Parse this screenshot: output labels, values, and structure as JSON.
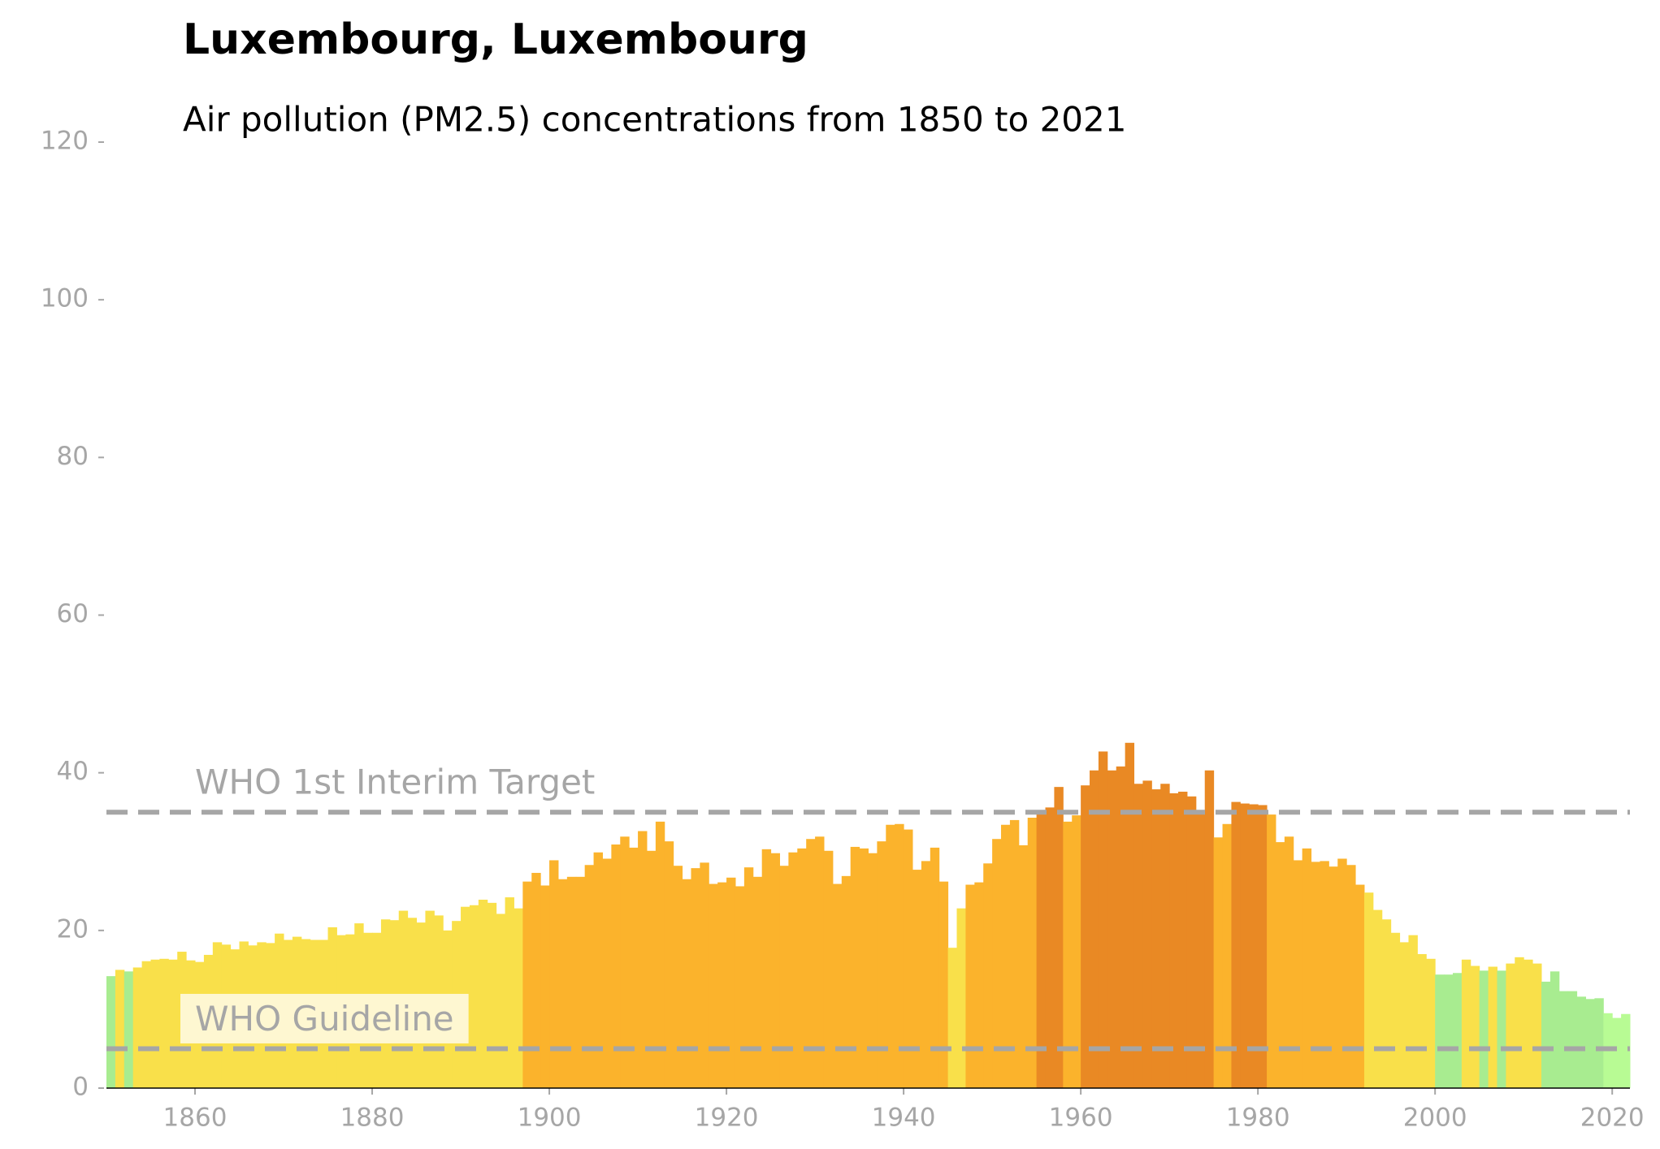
{
  "chart_data": {
    "type": "bar",
    "title": "Luxembourg, Luxembourg",
    "subtitle": "Air pollution (PM2.5) concentrations from 1850 to 2021",
    "x": [
      1850,
      1851,
      1852,
      1853,
      1854,
      1855,
      1856,
      1857,
      1858,
      1859,
      1860,
      1861,
      1862,
      1863,
      1864,
      1865,
      1866,
      1867,
      1868,
      1869,
      1870,
      1871,
      1872,
      1873,
      1874,
      1875,
      1876,
      1877,
      1878,
      1879,
      1880,
      1881,
      1882,
      1883,
      1884,
      1885,
      1886,
      1887,
      1888,
      1889,
      1890,
      1891,
      1892,
      1893,
      1894,
      1895,
      1896,
      1897,
      1898,
      1899,
      1900,
      1901,
      1902,
      1903,
      1904,
      1905,
      1906,
      1907,
      1908,
      1909,
      1910,
      1911,
      1912,
      1913,
      1914,
      1915,
      1916,
      1917,
      1918,
      1919,
      1920,
      1921,
      1922,
      1923,
      1924,
      1925,
      1926,
      1927,
      1928,
      1929,
      1930,
      1931,
      1932,
      1933,
      1934,
      1935,
      1936,
      1937,
      1938,
      1939,
      1940,
      1941,
      1942,
      1943,
      1944,
      1945,
      1946,
      1947,
      1948,
      1949,
      1950,
      1951,
      1952,
      1953,
      1954,
      1955,
      1956,
      1957,
      1958,
      1959,
      1960,
      1961,
      1962,
      1963,
      1964,
      1965,
      1966,
      1967,
      1968,
      1969,
      1970,
      1971,
      1972,
      1973,
      1974,
      1975,
      1976,
      1977,
      1978,
      1979,
      1980,
      1981,
      1982,
      1983,
      1984,
      1985,
      1986,
      1987,
      1988,
      1989,
      1990,
      1991,
      1992,
      1993,
      1994,
      1995,
      1996,
      1997,
      1998,
      1999,
      2000,
      2001,
      2002,
      2003,
      2004,
      2005,
      2006,
      2007,
      2008,
      2009,
      2010,
      2011,
      2012,
      2013,
      2014,
      2015,
      2016,
      2017,
      2018,
      2019,
      2020,
      2021
    ],
    "values": [
      14.2,
      15.0,
      14.8,
      15.3,
      16.1,
      16.3,
      16.4,
      16.3,
      17.3,
      16.2,
      16.0,
      16.9,
      18.5,
      18.2,
      17.6,
      18.6,
      18.1,
      18.5,
      18.4,
      19.6,
      18.8,
      19.2,
      18.9,
      18.8,
      18.8,
      20.4,
      19.4,
      19.5,
      20.9,
      19.7,
      19.7,
      21.4,
      21.3,
      22.5,
      21.6,
      21.0,
      22.5,
      21.9,
      20.0,
      21.2,
      23.0,
      23.2,
      23.9,
      23.5,
      22.1,
      24.2,
      22.8,
      26.2,
      27.3,
      25.7,
      28.9,
      26.5,
      26.8,
      26.8,
      28.3,
      29.9,
      29.1,
      30.9,
      31.9,
      30.5,
      32.6,
      30.1,
      33.8,
      31.3,
      28.2,
      26.5,
      27.9,
      28.6,
      25.9,
      26.1,
      26.7,
      25.6,
      28.0,
      26.8,
      30.3,
      29.8,
      28.2,
      29.9,
      30.4,
      31.6,
      31.9,
      30.1,
      25.9,
      26.9,
      30.6,
      30.4,
      29.8,
      31.3,
      33.4,
      33.5,
      32.8,
      27.7,
      28.8,
      30.5,
      26.2,
      17.8,
      22.8,
      25.8,
      26.1,
      28.5,
      31.6,
      33.4,
      34.0,
      30.8,
      34.3,
      35.0,
      35.6,
      38.2,
      33.8,
      34.6,
      38.4,
      40.3,
      42.7,
      40.3,
      40.8,
      43.8,
      38.6,
      39.0,
      37.9,
      38.6,
      37.4,
      37.6,
      37.0,
      35.2,
      40.3,
      31.8,
      33.5,
      36.3,
      36.1,
      36.0,
      35.9,
      34.7,
      31.2,
      31.9,
      28.9,
      30.4,
      28.7,
      28.8,
      28.1,
      29.1,
      28.3,
      25.8,
      24.8,
      22.6,
      21.4,
      19.7,
      18.5,
      19.4,
      17.0,
      16.4,
      14.4,
      14.4,
      14.6,
      16.3,
      15.5,
      14.9,
      15.4,
      14.9,
      15.8,
      16.6,
      16.3,
      15.8,
      13.5,
      14.8,
      12.3,
      12.3,
      11.6,
      11.3,
      11.4,
      9.5,
      8.9,
      9.4
    ],
    "colors": [
      "#a8ec90",
      "#f9e04a",
      "#a8ec90",
      "#f9e04a",
      "#f9e04a",
      "#f9e04a",
      "#f9e04a",
      "#f9e04a",
      "#f9e04a",
      "#f9e04a",
      "#f9e04a",
      "#f9e04a",
      "#f9e04a",
      "#f9e04a",
      "#f9e04a",
      "#f9e04a",
      "#f9e04a",
      "#f9e04a",
      "#f9e04a",
      "#f9e04a",
      "#f9e04a",
      "#f9e04a",
      "#f9e04a",
      "#f9e04a",
      "#f9e04a",
      "#f9e04a",
      "#f9e04a",
      "#f9e04a",
      "#f9e04a",
      "#f9e04a",
      "#f9e04a",
      "#f9e04a",
      "#f9e04a",
      "#f9e04a",
      "#f9e04a",
      "#f9e04a",
      "#f9e04a",
      "#f9e04a",
      "#f9e04a",
      "#f9e04a",
      "#f9e04a",
      "#f9e04a",
      "#f9e04a",
      "#f9e04a",
      "#f9e04a",
      "#f9e04a",
      "#f9e04a",
      "#fbb32c",
      "#fbb32c",
      "#fbb32c",
      "#fbb32c",
      "#fbb32c",
      "#fbb32c",
      "#fbb32c",
      "#fbb32c",
      "#fbb32c",
      "#fbb32c",
      "#fbb32c",
      "#fbb32c",
      "#fbb32c",
      "#fbb32c",
      "#fbb32c",
      "#fbb32c",
      "#fbb32c",
      "#fbb32c",
      "#fbb32c",
      "#fbb32c",
      "#fbb32c",
      "#fbb32c",
      "#fbb32c",
      "#fbb32c",
      "#fbb32c",
      "#fbb32c",
      "#fbb32c",
      "#fbb32c",
      "#fbb32c",
      "#fbb32c",
      "#fbb32c",
      "#fbb32c",
      "#fbb32c",
      "#fbb32c",
      "#fbb32c",
      "#fbb32c",
      "#fbb32c",
      "#fbb32c",
      "#fbb32c",
      "#fbb32c",
      "#fbb32c",
      "#fbb32c",
      "#fbb32c",
      "#fbb32c",
      "#fbb32c",
      "#fbb32c",
      "#fbb32c",
      "#fbb32c",
      "#f9e04a",
      "#f9e04a",
      "#fbb32c",
      "#fbb32c",
      "#fbb32c",
      "#fbb32c",
      "#fbb32c",
      "#fbb32c",
      "#fbb32c",
      "#fbb32c",
      "#e98924",
      "#e98924",
      "#e98924",
      "#fbb32c",
      "#fbb32c",
      "#e98924",
      "#e98924",
      "#e98924",
      "#e98924",
      "#e98924",
      "#e98924",
      "#e98924",
      "#e98924",
      "#e98924",
      "#e98924",
      "#e98924",
      "#e98924",
      "#e98924",
      "#e98924",
      "#e98924",
      "#fbb32c",
      "#fbb32c",
      "#e98924",
      "#e98924",
      "#e98924",
      "#e98924",
      "#fbb32c",
      "#fbb32c",
      "#fbb32c",
      "#fbb32c",
      "#fbb32c",
      "#fbb32c",
      "#fbb32c",
      "#fbb32c",
      "#fbb32c",
      "#fbb32c",
      "#fbb32c",
      "#f9e04a",
      "#f9e04a",
      "#f9e04a",
      "#f9e04a",
      "#f9e04a",
      "#f9e04a",
      "#f9e04a",
      "#f9e04a",
      "#a8ec90",
      "#a8ec90",
      "#a8ec90",
      "#f9e04a",
      "#f9e04a",
      "#a8ec90",
      "#f9e04a",
      "#a8ec90",
      "#f9e04a",
      "#f9e04a",
      "#f9e04a",
      "#f9e04a",
      "#a8ec90",
      "#a8ec90",
      "#a8ec90",
      "#a8ec90",
      "#a8ec90",
      "#a8ec90",
      "#a8ec90",
      "#b8fb94",
      "#b8fb94",
      "#b8fb94"
    ],
    "xlim": [
      1850,
      2022
    ],
    "xticks": [
      1860,
      1880,
      1900,
      1920,
      1940,
      1960,
      1980,
      2000,
      2020
    ],
    "ylim": [
      0,
      120
    ],
    "yticks": [
      0,
      20,
      40,
      60,
      80,
      100,
      120
    ],
    "reference_lines": [
      {
        "value": 35,
        "label": "WHO 1st Interim Target"
      },
      {
        "value": 5,
        "label": "WHO Guideline"
      }
    ]
  }
}
